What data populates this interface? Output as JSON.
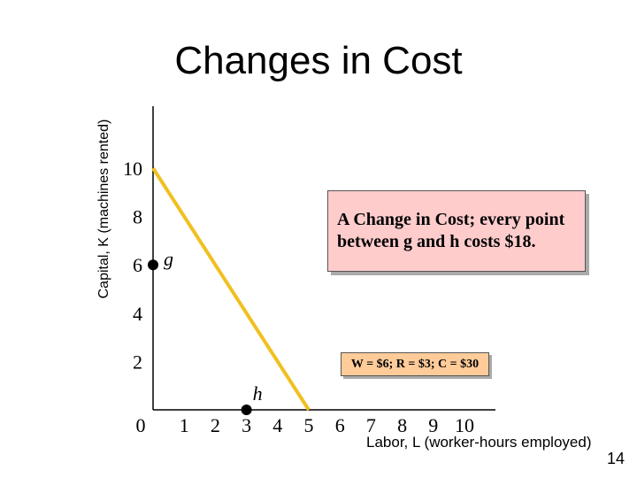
{
  "slide": {
    "title": "Changes in Cost",
    "page_number": "14",
    "annotation": "A Change in Cost; every point between g and h costs $18.",
    "budget_label": "W = $6; R = $3; C = $30"
  },
  "chart_data": {
    "type": "line",
    "title": "Changes in Cost",
    "xlabel": "Labor, L (worker-hours employed)",
    "ylabel": "Capital, K (machines rented)",
    "x_ticks": [
      0,
      1,
      2,
      3,
      4,
      5,
      6,
      7,
      8,
      9,
      10
    ],
    "y_ticks": [
      2,
      4,
      6,
      8,
      10
    ],
    "xlim": [
      0,
      10
    ],
    "ylim": [
      0,
      10
    ],
    "grid": false,
    "series": [
      {
        "x": [
          0,
          5
        ],
        "y": [
          10,
          0
        ],
        "color": "#f0c020"
      }
    ],
    "points": [
      {
        "label": "g",
        "x": 0,
        "y": 6
      },
      {
        "label": "h",
        "x": 3,
        "y": 0
      }
    ]
  }
}
